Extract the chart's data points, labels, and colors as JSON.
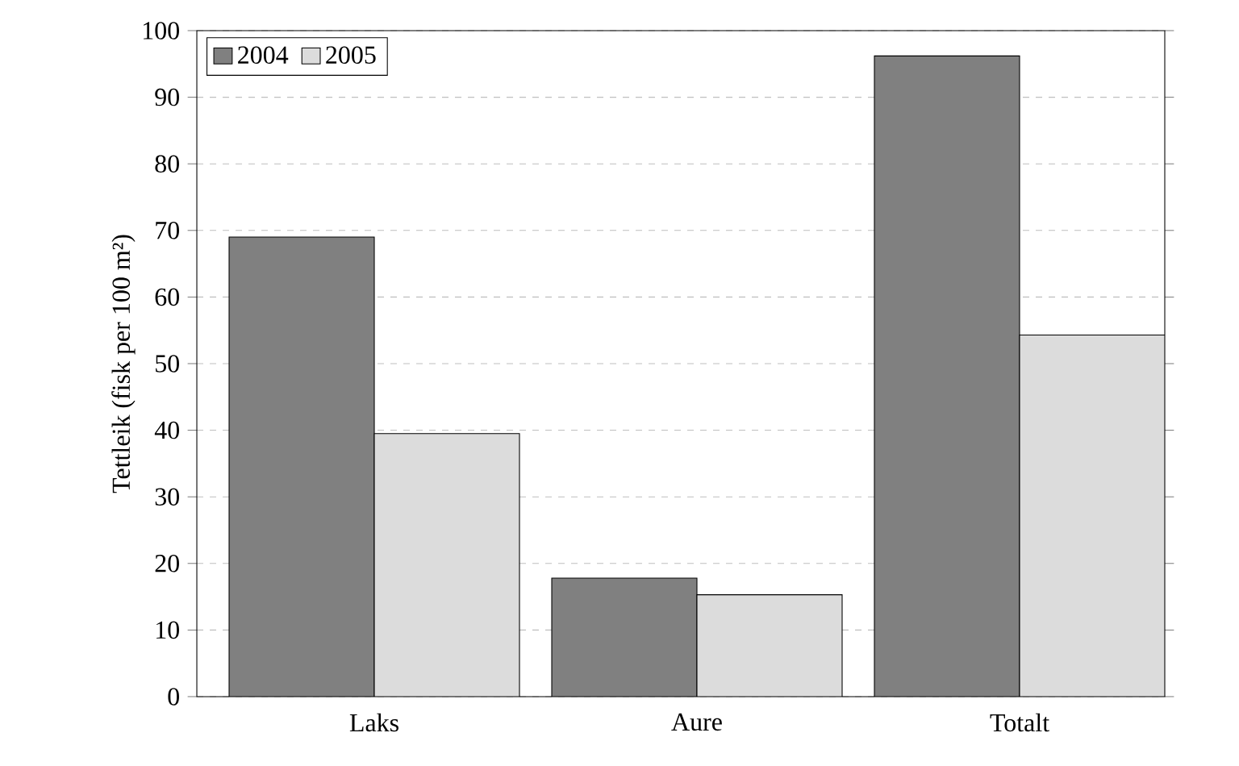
{
  "chart_data": {
    "type": "bar",
    "ylabel": "Tettleik (fisk per 100 m²)",
    "categories": [
      "Laks",
      "Aure",
      "Totalt"
    ],
    "series": [
      {
        "name": "2004",
        "color": "#808080",
        "values": [
          69,
          17.8,
          96.2
        ]
      },
      {
        "name": "2005",
        "color": "#dcdcdc",
        "values": [
          39.5,
          15.3,
          54.3
        ]
      }
    ],
    "ylim": [
      0,
      100
    ],
    "yticks": [
      0,
      10,
      20,
      30,
      40,
      50,
      60,
      70,
      80,
      90,
      100
    ],
    "grid": "y",
    "legend": "top left"
  }
}
